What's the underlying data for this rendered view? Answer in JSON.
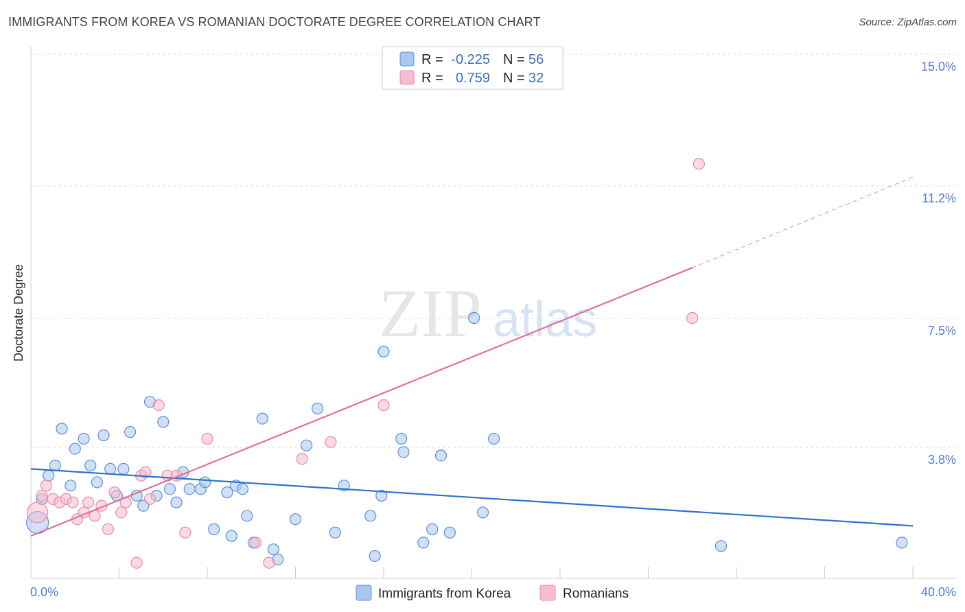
{
  "header": {
    "title": "IMMIGRANTS FROM KOREA VS ROMANIAN DOCTORATE DEGREE CORRELATION CHART",
    "source": "Source: ZipAtlas.com"
  },
  "watermark": {
    "zip": "ZIP",
    "atlas": "atlas"
  },
  "colors": {
    "korea_fill": "#a9c8f0",
    "korea_stroke": "#5b8fd9",
    "korea_line": "#2f6fd0",
    "romania_fill": "#f7bcd0",
    "romania_stroke": "#e98aaa",
    "romania_line": "#e0709a",
    "tick_label": "#4a7fd4",
    "grid": "#dddddd"
  },
  "legend": {
    "korea": {
      "r_label": "R = ",
      "r_value": "-0.225",
      "n_label": "N = ",
      "n_value": "56"
    },
    "romania": {
      "r_label": "R = ",
      "r_value": "0.759",
      "n_label": "N = ",
      "n_value": "32"
    }
  },
  "chart_data": {
    "type": "scatter",
    "title": "IMMIGRANTS FROM KOREA VS ROMANIAN DOCTORATE DEGREE CORRELATION CHART",
    "xlabel": "",
    "ylabel": "Doctorate Degree",
    "xlim": [
      0,
      40
    ],
    "ylim": [
      0,
      15
    ],
    "x_tick_labels": [
      "0.0%",
      "40.0%"
    ],
    "y_ticks": [
      3.8,
      7.5,
      11.2,
      15.0
    ],
    "y_tick_labels": [
      "3.8%",
      "7.5%",
      "11.2%",
      "15.0%"
    ],
    "grid": true,
    "legend_position": "top-center",
    "series": [
      {
        "name": "Immigrants from Korea",
        "key": "korea",
        "points": [
          [
            0.3,
            1.4
          ],
          [
            0.5,
            2.1
          ],
          [
            0.8,
            2.8
          ],
          [
            1.1,
            3.1
          ],
          [
            1.4,
            4.2
          ],
          [
            1.8,
            2.5
          ],
          [
            2.0,
            3.6
          ],
          [
            2.4,
            3.9
          ],
          [
            2.7,
            3.1
          ],
          [
            3.0,
            2.6
          ],
          [
            3.3,
            4.0
          ],
          [
            3.6,
            3.0
          ],
          [
            3.9,
            2.2
          ],
          [
            4.2,
            3.0
          ],
          [
            4.5,
            4.1
          ],
          [
            4.8,
            2.2
          ],
          [
            5.1,
            1.9
          ],
          [
            5.4,
            5.0
          ],
          [
            5.7,
            2.2
          ],
          [
            6.0,
            4.4
          ],
          [
            6.3,
            2.4
          ],
          [
            6.6,
            2.0
          ],
          [
            6.9,
            2.9
          ],
          [
            7.2,
            2.4
          ],
          [
            7.7,
            2.4
          ],
          [
            7.9,
            2.6
          ],
          [
            8.3,
            1.2
          ],
          [
            8.9,
            2.3
          ],
          [
            9.1,
            1.0
          ],
          [
            9.3,
            2.5
          ],
          [
            9.6,
            2.4
          ],
          [
            9.8,
            1.6
          ],
          [
            10.1,
            0.8
          ],
          [
            10.5,
            4.5
          ],
          [
            11.0,
            0.6
          ],
          [
            11.2,
            0.3
          ],
          [
            12.0,
            1.5
          ],
          [
            12.5,
            3.7
          ],
          [
            13.0,
            4.8
          ],
          [
            13.8,
            1.1
          ],
          [
            14.2,
            2.5
          ],
          [
            15.4,
            1.6
          ],
          [
            15.6,
            0.4
          ],
          [
            15.9,
            2.2
          ],
          [
            16.0,
            6.5
          ],
          [
            16.8,
            3.9
          ],
          [
            16.9,
            3.5
          ],
          [
            17.8,
            0.8
          ],
          [
            18.2,
            1.2
          ],
          [
            18.6,
            3.4
          ],
          [
            19.0,
            1.1
          ],
          [
            20.1,
            7.5
          ],
          [
            20.5,
            1.7
          ],
          [
            21.0,
            3.9
          ],
          [
            31.3,
            0.7
          ],
          [
            39.5,
            0.8
          ]
        ],
        "trend": {
          "x0": 0,
          "y0": 3.0,
          "x1": 40,
          "y1": 1.3
        },
        "r": -0.225,
        "n": 56
      },
      {
        "name": "Romanians",
        "key": "romania",
        "points": [
          [
            0.3,
            1.7
          ],
          [
            0.5,
            2.2
          ],
          [
            0.7,
            2.5
          ],
          [
            1.0,
            2.1
          ],
          [
            1.3,
            2.0
          ],
          [
            1.6,
            2.1
          ],
          [
            1.9,
            2.0
          ],
          [
            2.1,
            1.5
          ],
          [
            2.4,
            1.7
          ],
          [
            2.6,
            2.0
          ],
          [
            2.9,
            1.6
          ],
          [
            3.2,
            1.9
          ],
          [
            3.5,
            1.2
          ],
          [
            3.8,
            2.3
          ],
          [
            4.1,
            1.7
          ],
          [
            4.3,
            2.0
          ],
          [
            4.8,
            0.2
          ],
          [
            5.0,
            2.8
          ],
          [
            5.2,
            2.9
          ],
          [
            5.4,
            2.1
          ],
          [
            5.8,
            4.9
          ],
          [
            6.2,
            2.8
          ],
          [
            6.6,
            2.8
          ],
          [
            7.0,
            1.1
          ],
          [
            8.0,
            3.9
          ],
          [
            10.2,
            0.8
          ],
          [
            10.8,
            0.2
          ],
          [
            12.3,
            3.3
          ],
          [
            13.6,
            3.8
          ],
          [
            16.0,
            4.9
          ],
          [
            30.3,
            12.1
          ],
          [
            30.0,
            7.5
          ]
        ],
        "trend": {
          "x0": 0,
          "y0": 1.0,
          "x1": 30.0,
          "y1": 9.0
        },
        "trend_dashed": {
          "x0": 30.0,
          "y0": 9.0,
          "x1": 40,
          "y1": 11.7
        },
        "r": 0.759,
        "n": 32
      }
    ]
  },
  "bottom_legend": {
    "korea_label": "Immigrants from Korea",
    "romania_label": "Romanians"
  }
}
